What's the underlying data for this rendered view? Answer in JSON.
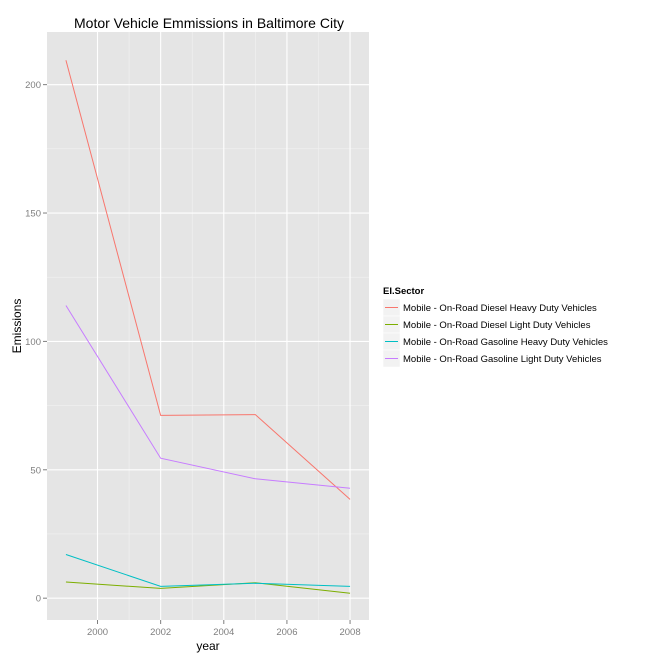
{
  "chart_data": {
    "type": "line",
    "title": "Motor Vehicle Emmissions in Baltimore City",
    "xlabel": "year",
    "ylabel": "Emissions",
    "xlim": [
      1998.4,
      2008.6
    ],
    "ylim": [
      -8.5,
      220.5
    ],
    "xticks": [
      2000,
      2002,
      2004,
      2006,
      2008
    ],
    "yticks": [
      0,
      50,
      100,
      150,
      200
    ],
    "grid": true,
    "legend": {
      "title": "EI.Sector",
      "position": "right"
    },
    "x": [
      1999,
      2002,
      2005,
      2008
    ],
    "series": [
      {
        "name": "Mobile - On-Road Diesel Heavy Duty Vehicles",
        "color": "#F8766D",
        "values": [
          209.5,
          71.2,
          71.5,
          38.5
        ]
      },
      {
        "name": "Mobile - On-Road Diesel Light Duty Vehicles",
        "color": "#7CAE00",
        "values": [
          6.3,
          3.8,
          6.0,
          1.9
        ]
      },
      {
        "name": "Mobile - On-Road Gasoline Heavy Duty Vehicles",
        "color": "#00BFC4",
        "values": [
          17.0,
          4.6,
          5.8,
          4.6
        ]
      },
      {
        "name": "Mobile - On-Road Gasoline Light Duty Vehicles",
        "color": "#C77CFF",
        "values": [
          114.0,
          54.5,
          46.5,
          42.8
        ]
      }
    ]
  }
}
